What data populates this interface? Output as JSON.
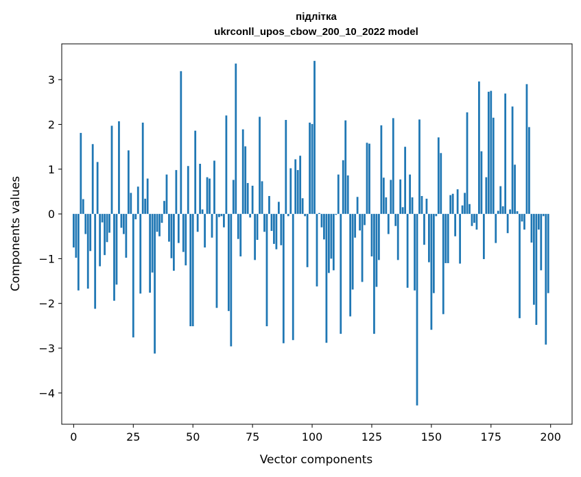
{
  "chart_data": {
    "type": "bar",
    "title": "підлітка",
    "subtitle": "ukrconll_upos_cbow_200_10_2022 model",
    "xlabel": "Vector components",
    "ylabel": "Components values",
    "xlim": [
      -5,
      209
    ],
    "ylim": [
      -4.7,
      3.8
    ],
    "xticks": [
      0,
      25,
      50,
      75,
      100,
      125,
      150,
      175,
      200
    ],
    "yticks": [
      -4,
      -3,
      -2,
      -1,
      0,
      1,
      2,
      3
    ],
    "ytick_labels": [
      "−4",
      "−3",
      "−2",
      "−1",
      "0",
      "1",
      "2",
      "3"
    ],
    "bar_color": "#1f77b4",
    "grid": false,
    "values": [
      -0.75,
      -0.98,
      -1.71,
      1.81,
      0.33,
      -0.45,
      -1.67,
      -0.83,
      1.56,
      -2.12,
      1.16,
      -1.17,
      -0.19,
      -0.92,
      -0.63,
      -0.42,
      1.97,
      -1.94,
      -1.58,
      2.07,
      -0.31,
      -0.45,
      -0.98,
      1.42,
      0.47,
      -2.76,
      -0.12,
      0.61,
      -1.78,
      2.04,
      0.34,
      0.79,
      -1.76,
      -1.31,
      -3.12,
      -0.4,
      -0.5,
      -0.2,
      0.29,
      0.88,
      -0.62,
      -0.99,
      -1.27,
      0.98,
      -0.65,
      3.19,
      -0.85,
      -1.15,
      1.07,
      -2.51,
      -2.51,
      1.86,
      -0.4,
      1.12,
      0.1,
      -0.75,
      0.82,
      0.79,
      -0.53,
      1.19,
      -2.1,
      -0.07,
      -0.05,
      -0.3,
      2.2,
      -2.17,
      -2.96,
      0.76,
      3.36,
      -0.56,
      -0.95,
      1.89,
      1.51,
      0.69,
      -0.08,
      0.63,
      -1.03,
      -0.58,
      2.17,
      0.73,
      -0.4,
      -2.51,
      0.4,
      -0.38,
      -0.67,
      -0.79,
      0.27,
      -0.7,
      -2.89,
      2.1,
      -0.05,
      1.02,
      -2.82,
      1.22,
      0.98,
      1.3,
      0.35,
      -0.05,
      -1.19,
      2.04,
      2.01,
      3.42,
      -1.62,
      0.02,
      -0.3,
      -0.57,
      -2.88,
      -1.32,
      -1.0,
      -1.26,
      -0.02,
      0.88,
      -2.68,
      1.2,
      2.09,
      0.86,
      -2.29,
      -1.69,
      -0.53,
      0.38,
      -0.37,
      -1.52,
      -0.25,
      1.59,
      1.57,
      -0.95,
      -2.68,
      -1.63,
      -1.03,
      1.98,
      0.81,
      0.37,
      -0.45,
      0.76,
      2.14,
      -0.27,
      -1.03,
      0.77,
      0.15,
      1.5,
      -1.65,
      0.88,
      0.37,
      -1.71,
      -4.28,
      2.11,
      0.4,
      -0.69,
      0.34,
      -1.08,
      -2.59,
      -1.77,
      -0.05,
      1.71,
      1.36,
      -2.24,
      -1.1,
      -1.1,
      0.42,
      0.45,
      -0.5,
      0.55,
      -1.11,
      0.19,
      0.47,
      2.27,
      0.22,
      -0.27,
      -0.2,
      -0.35,
      2.96,
      1.4,
      -1.01,
      0.82,
      2.73,
      2.75,
      2.15,
      -0.65,
      0.07,
      0.62,
      0.17,
      2.69,
      -0.43,
      0.1,
      2.4,
      1.1,
      0.06,
      -2.33,
      -0.17,
      -0.35,
      2.9,
      1.94,
      -0.64,
      -2.03,
      -2.48,
      -0.35,
      -1.26,
      -0.05,
      -2.92,
      -1.77
    ]
  }
}
